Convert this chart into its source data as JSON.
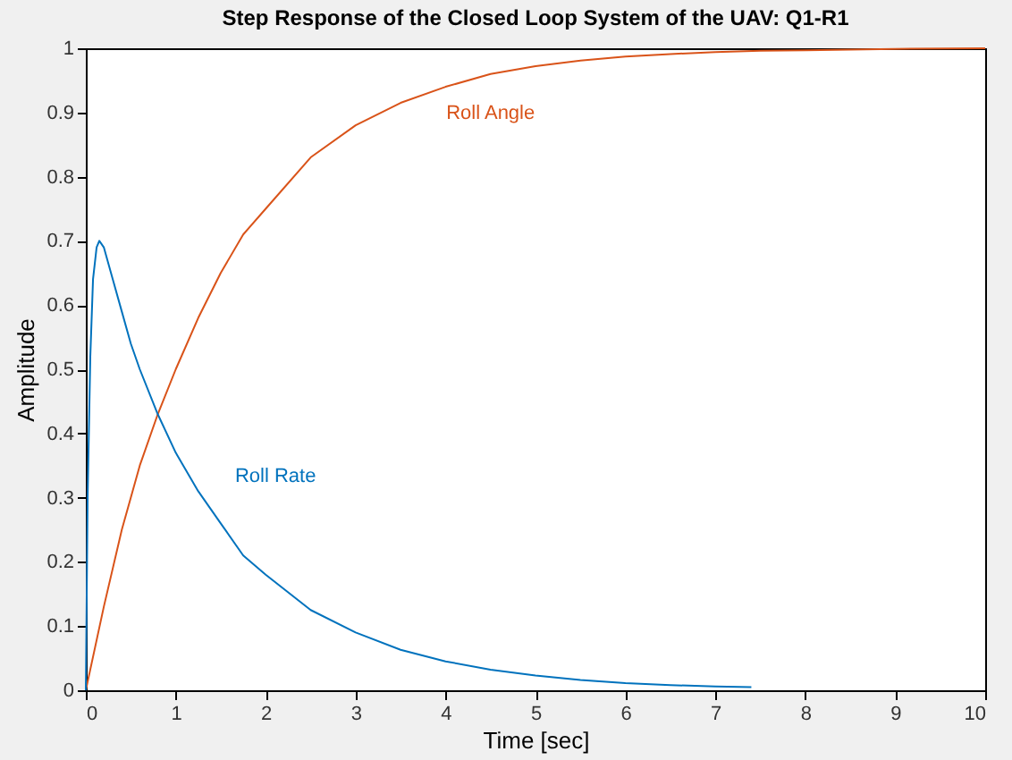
{
  "chart_data": {
    "type": "line",
    "title": "Step Response of the Closed Loop System of the UAV: Q1-R1",
    "xlabel": "Time [sec]",
    "ylabel": "Amplitude",
    "xlim": [
      0,
      10
    ],
    "ylim": [
      0,
      1
    ],
    "xticks": [
      0,
      1,
      2,
      3,
      4,
      5,
      6,
      7,
      8,
      9,
      10
    ],
    "yticks": [
      0,
      0.1,
      0.2,
      0.3,
      0.4,
      0.5,
      0.6,
      0.7,
      0.8,
      0.9,
      1
    ],
    "grid": false,
    "marker": "none",
    "line_style": "solid",
    "series": [
      {
        "name": "Roll Angle",
        "color": "#d95319",
        "x": [
          0,
          0.2,
          0.4,
          0.6,
          0.8,
          1.0,
          1.25,
          1.5,
          1.75,
          2.0,
          2.5,
          3.0,
          3.5,
          4.0,
          4.5,
          5.0,
          5.5,
          6.0,
          6.5,
          7.0,
          7.5,
          8.0,
          9.0,
          10.0
        ],
        "values": [
          0,
          0.13,
          0.25,
          0.35,
          0.43,
          0.5,
          0.58,
          0.65,
          0.71,
          0.75,
          0.83,
          0.88,
          0.915,
          0.94,
          0.96,
          0.972,
          0.981,
          0.987,
          0.991,
          0.994,
          0.996,
          0.997,
          0.999,
          1.0
        ]
      },
      {
        "name": "Roll Rate",
        "color": "#0072bd",
        "x": [
          0,
          0.02,
          0.05,
          0.08,
          0.12,
          0.15,
          0.2,
          0.3,
          0.4,
          0.5,
          0.6,
          0.8,
          1.0,
          1.25,
          1.5,
          1.75,
          2.0,
          2.5,
          3.0,
          3.5,
          4.0,
          4.5,
          5.0,
          5.5,
          6.0,
          6.5,
          7.0,
          7.4
        ],
        "values": [
          0,
          0.3,
          0.52,
          0.64,
          0.69,
          0.7,
          0.69,
          0.64,
          0.59,
          0.54,
          0.5,
          0.43,
          0.37,
          0.31,
          0.26,
          0.21,
          0.18,
          0.125,
          0.09,
          0.063,
          0.045,
          0.032,
          0.023,
          0.016,
          0.011,
          0.008,
          0.006,
          0.005
        ]
      }
    ]
  }
}
